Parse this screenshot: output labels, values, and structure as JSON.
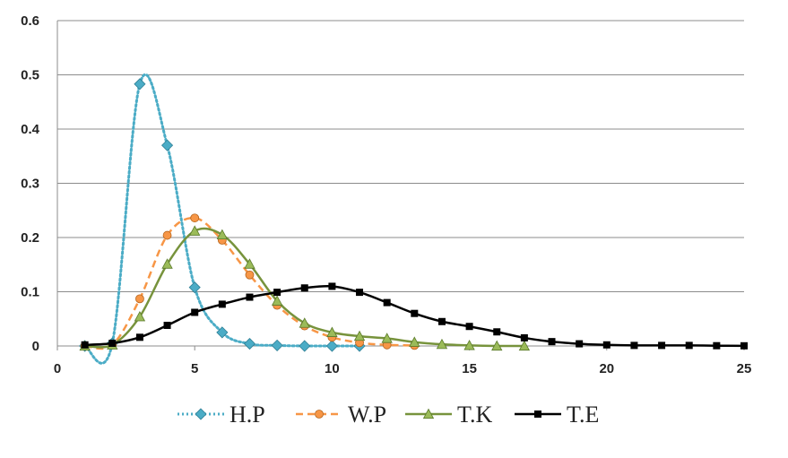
{
  "chart_data": {
    "type": "line",
    "title": "",
    "xlabel": "",
    "ylabel": "",
    "xlim": [
      0,
      25
    ],
    "ylim": [
      0,
      0.6
    ],
    "x_ticks": [
      "0",
      "5",
      "10",
      "15",
      "20",
      "25"
    ],
    "y_ticks": [
      "0",
      "0.1",
      "0.2",
      "0.3",
      "0.4",
      "0.5",
      "0.6"
    ],
    "grid": "horizontal",
    "legend_position": "bottom",
    "series": [
      {
        "name": "H.P",
        "color": "#4bacc6",
        "line": "dotted",
        "marker": "diamond",
        "x": [
          1,
          2,
          3,
          4,
          5,
          6,
          7,
          8,
          9,
          10,
          11
        ],
        "y": [
          0,
          0.005,
          0.483,
          0.37,
          0.108,
          0.025,
          0.004,
          0.001,
          0,
          0,
          0
        ]
      },
      {
        "name": "W.P",
        "color": "#f79646",
        "line": "dashed",
        "marker": "circle",
        "x": [
          1,
          2,
          3,
          4,
          5,
          6,
          7,
          8,
          9,
          10,
          11,
          12,
          13
        ],
        "y": [
          0,
          0.002,
          0.087,
          0.204,
          0.236,
          0.195,
          0.131,
          0.075,
          0.037,
          0.016,
          0.006,
          0.002,
          0.001
        ]
      },
      {
        "name": "T.K",
        "color": "#77933c",
        "line": "solid",
        "marker": "triangle",
        "x": [
          1,
          2,
          3,
          4,
          5,
          6,
          7,
          8,
          9,
          10,
          11,
          12,
          13,
          14,
          15,
          16,
          17
        ],
        "y": [
          0,
          0.002,
          0.054,
          0.151,
          0.212,
          0.205,
          0.151,
          0.083,
          0.042,
          0.025,
          0.018,
          0.014,
          0.007,
          0.003,
          0.001,
          0,
          0
        ]
      },
      {
        "name": "T.E",
        "color": "#000000",
        "line": "solid",
        "marker": "square",
        "x": [
          1,
          2,
          3,
          4,
          5,
          6,
          7,
          8,
          9,
          10,
          11,
          12,
          13,
          14,
          15,
          16,
          17,
          18,
          19,
          20,
          21,
          22,
          23,
          24,
          25
        ],
        "y": [
          0.002,
          0.005,
          0.016,
          0.038,
          0.062,
          0.077,
          0.09,
          0.099,
          0.107,
          0.11,
          0.099,
          0.08,
          0.06,
          0.045,
          0.036,
          0.026,
          0.015,
          0.008,
          0.004,
          0.002,
          0.001,
          0.001,
          0.001,
          0.0005,
          0.0003
        ]
      }
    ]
  }
}
